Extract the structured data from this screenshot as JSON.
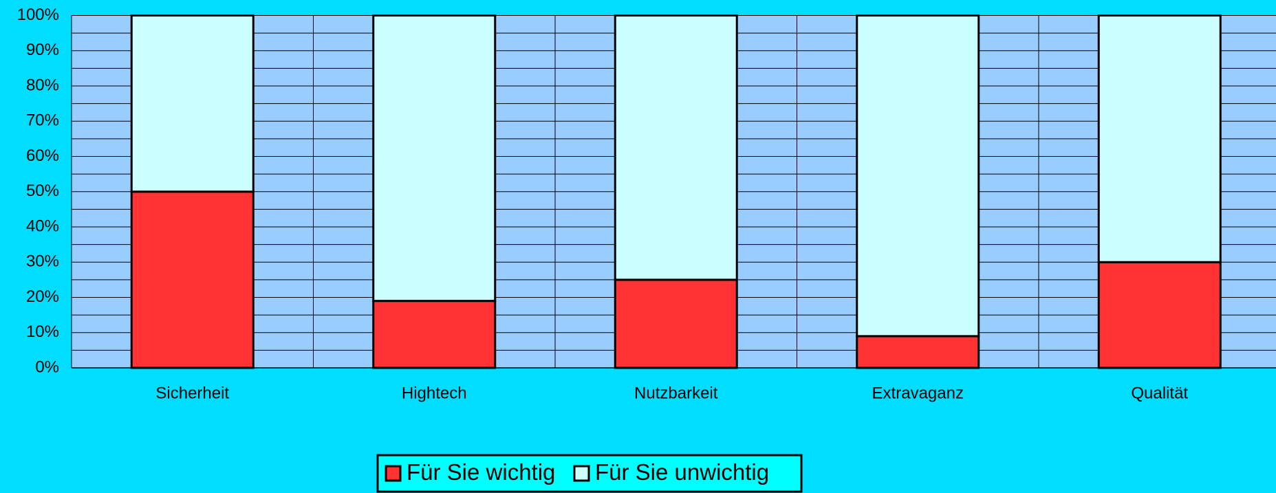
{
  "chart_data": {
    "type": "stacked_bar",
    "categories": [
      "Sicherheit",
      "Hightech",
      "Nutzbarkeit",
      "Extravaganz",
      "Qualität"
    ],
    "series": [
      {
        "name": "Für Sie wichtig",
        "color": "#ff3333",
        "values": [
          50,
          19,
          25,
          9,
          30
        ]
      },
      {
        "name": "Für Sie unwichtig",
        "color": "#ccffff",
        "values": [
          50,
          81,
          75,
          91,
          70
        ]
      }
    ],
    "ylim": [
      0,
      100
    ],
    "yticks": [
      {
        "value": 0,
        "label": "0%"
      },
      {
        "value": 10,
        "label": "10%"
      },
      {
        "value": 20,
        "label": "20%"
      },
      {
        "value": 30,
        "label": "30%"
      },
      {
        "value": 40,
        "label": "40%"
      },
      {
        "value": 50,
        "label": "50%"
      },
      {
        "value": 60,
        "label": "60%"
      },
      {
        "value": 70,
        "label": "70%"
      },
      {
        "value": 80,
        "label": "80%"
      },
      {
        "value": 90,
        "label": "90%"
      },
      {
        "value": 100,
        "label": "100%"
      }
    ],
    "minor_yticks": [
      5,
      15,
      25,
      35,
      45,
      55,
      65,
      75,
      85,
      95
    ],
    "grid": true,
    "legend": "bottom"
  }
}
